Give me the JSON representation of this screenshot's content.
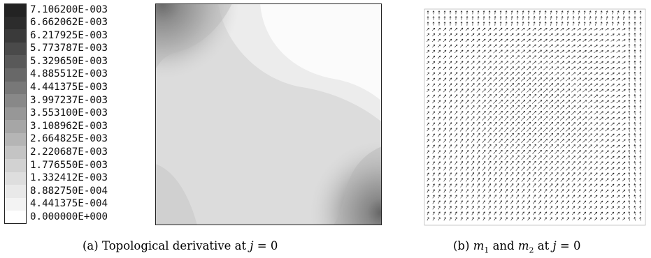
{
  "legend": {
    "labels": [
      "7.106200E-003",
      "6.662062E-003",
      "6.217925E-003",
      "5.773787E-003",
      "5.329650E-003",
      "4.885512E-003",
      "4.441375E-003",
      "3.997237E-003",
      "3.553100E-003",
      "3.108962E-003",
      "2.664825E-003",
      "2.220687E-003",
      "1.776550E-003",
      "1.332412E-003",
      "8.882750E-004",
      "4.441375E-004",
      "0.000000E+000"
    ],
    "colors": [
      "#232323",
      "#2c2c2c",
      "#3a3a3a",
      "#4a4a4a",
      "#595959",
      "#686868",
      "#787878",
      "#888888",
      "#979797",
      "#a6a6a6",
      "#b5b5b5",
      "#c4c4c4",
      "#d2d2d2",
      "#dedede",
      "#e9e9e9",
      "#f3f3f3",
      "#ffffff"
    ]
  },
  "captions": {
    "a": {
      "label": "(a)",
      "text": "Topological derivative at",
      "math_var": "j",
      "math_eq": "= 0"
    },
    "b": {
      "label": "(b)",
      "m1": "m",
      "m1_sub": "1",
      "and": "and",
      "m2": "m",
      "m2_sub": "2",
      "at": "at",
      "math_var": "j",
      "math_eq": "= 0"
    }
  }
}
